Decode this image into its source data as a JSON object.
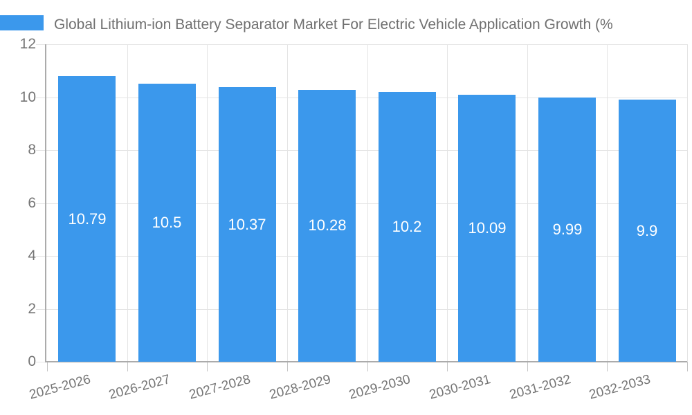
{
  "title": "Global Lithium-ion Battery Separator Market For Electric Vehicle Application Growth (%",
  "colors": {
    "bar": "#3B98EC",
    "title_text": "#707070",
    "axis_text": "#757575",
    "value_label_text": "#FFFFFF",
    "gridline": "#E4E4E4",
    "axis_line": "#ABABAB",
    "tick_line": "#C4C4C4",
    "background": "#FFFFFF"
  },
  "chart_data": {
    "type": "bar",
    "title": "Global Lithium-ion Battery Separator Market For Electric Vehicle Application Growth (%",
    "categories": [
      "2025-2026",
      "2026-2027",
      "2027-2028",
      "2028-2029",
      "2029-2030",
      "2030-2031",
      "2031-2032",
      "2032-2033"
    ],
    "values": [
      10.79,
      10.5,
      10.37,
      10.28,
      10.2,
      10.09,
      9.99,
      9.9
    ],
    "value_labels": [
      "10.79",
      "10.5",
      "10.37",
      "10.28",
      "10.2",
      "10.09",
      "9.99",
      "9.9"
    ],
    "yticks": [
      0,
      2,
      4,
      6,
      8,
      10,
      12
    ],
    "ytick_labels": [
      "0",
      "2",
      "4",
      "6",
      "8",
      "10",
      "12"
    ],
    "ylim": [
      0,
      12
    ],
    "grid": true,
    "legend_position": "top-left",
    "xlabel": "",
    "ylabel": ""
  }
}
